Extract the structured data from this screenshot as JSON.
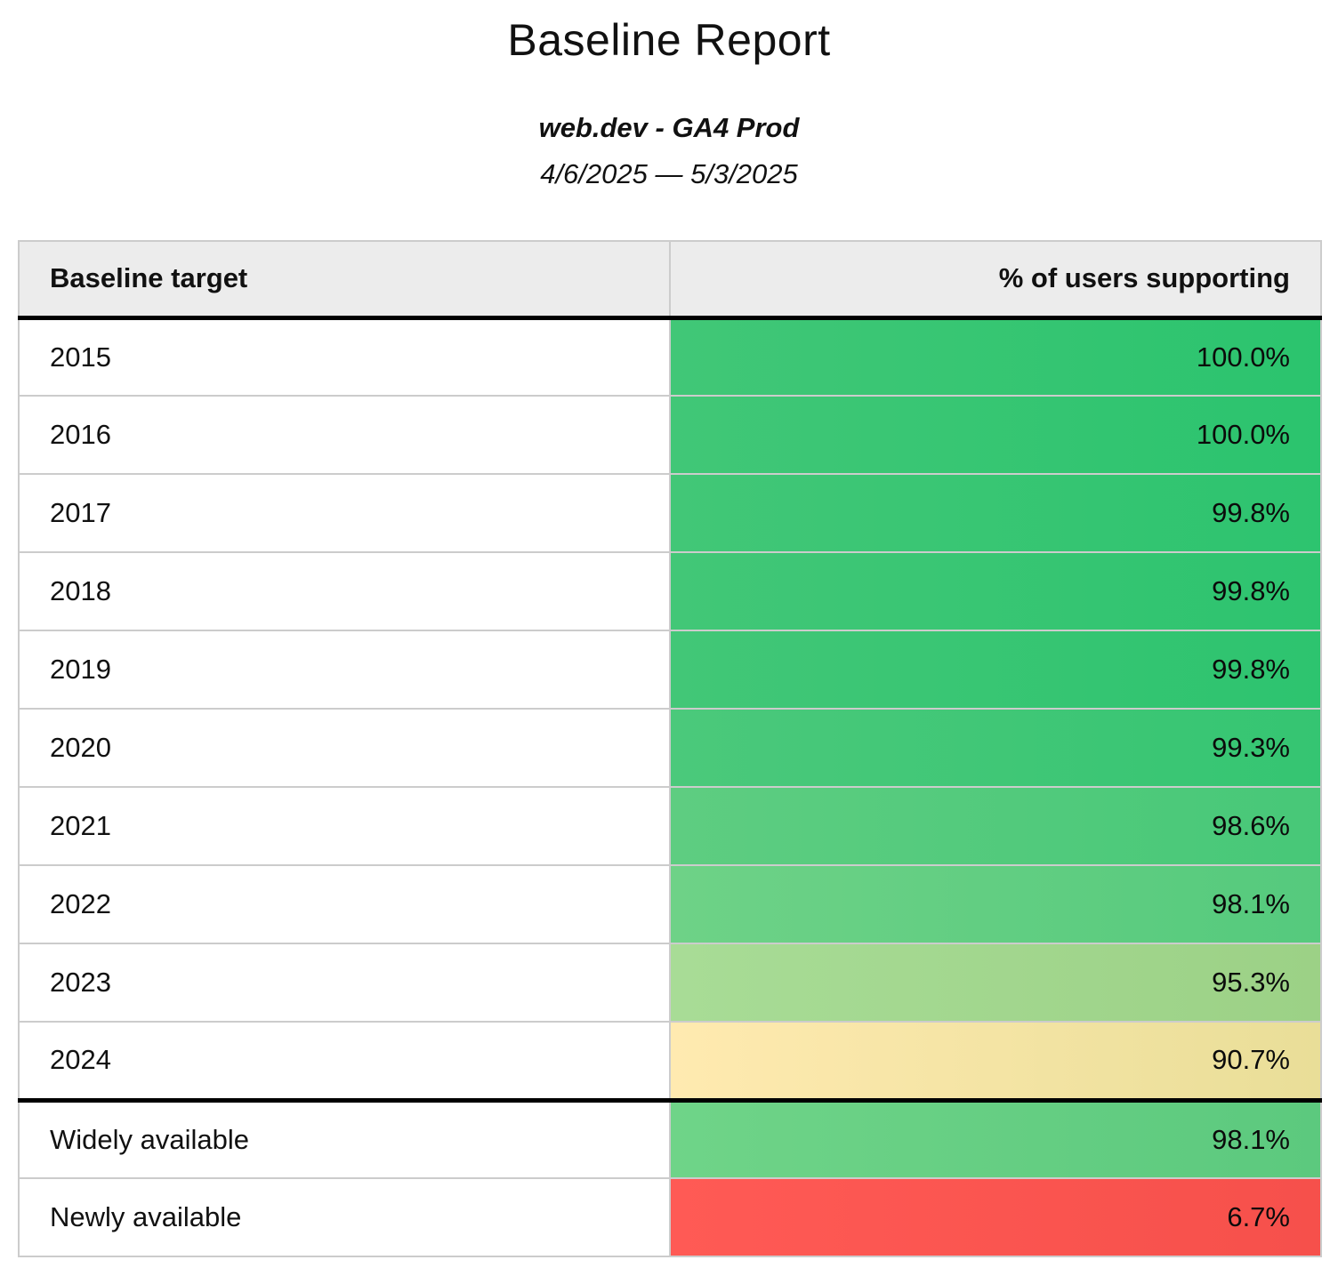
{
  "page": {
    "title": "Baseline Report",
    "subtitle": "web.dev - GA4 Prod",
    "date_range": "4/6/2025 — 5/3/2025"
  },
  "chart_data": {
    "type": "table",
    "title": "Baseline Report",
    "subtitle": "web.dev - GA4 Prod",
    "date_range": "4/6/2025 — 5/3/2025",
    "columns": [
      "Baseline target",
      "% of users supporting"
    ],
    "units": "percent of users supporting",
    "color_scale": "heatmap: green (high) through yellow to red (low), subtle lighter-left to darker-right gradient per cell",
    "rows": [
      {
        "target": "2015",
        "pct": 100.0,
        "label": "100.0%",
        "bg_left": "#41c777",
        "bg_right": "#2bc46e",
        "group": "year"
      },
      {
        "target": "2016",
        "pct": 100.0,
        "label": "100.0%",
        "bg_left": "#41c777",
        "bg_right": "#2bc46e",
        "group": "year"
      },
      {
        "target": "2017",
        "pct": 99.8,
        "label": "99.8%",
        "bg_left": "#42c777",
        "bg_right": "#2dc46f",
        "group": "year"
      },
      {
        "target": "2018",
        "pct": 99.8,
        "label": "99.8%",
        "bg_left": "#42c777",
        "bg_right": "#2dc46f",
        "group": "year"
      },
      {
        "target": "2019",
        "pct": 99.8,
        "label": "99.8%",
        "bg_left": "#42c777",
        "bg_right": "#2dc46f",
        "group": "year"
      },
      {
        "target": "2020",
        "pct": 99.3,
        "label": "99.3%",
        "bg_left": "#4bc97b",
        "bg_right": "#35c572",
        "group": "year"
      },
      {
        "target": "2021",
        "pct": 98.6,
        "label": "98.6%",
        "bg_left": "#5ecd81",
        "bg_right": "#47c878",
        "group": "year"
      },
      {
        "target": "2022",
        "pct": 98.1,
        "label": "98.1%",
        "bg_left": "#6ed287",
        "bg_right": "#55ca7d",
        "group": "year"
      },
      {
        "target": "2023",
        "pct": 95.3,
        "label": "95.3%",
        "bg_left": "#a8dc96",
        "bg_right": "#9cd186",
        "group": "year"
      },
      {
        "target": "2024",
        "pct": 90.7,
        "label": "90.7%",
        "bg_left": "#ffeab0",
        "bg_right": "#e9de98",
        "group": "year"
      },
      {
        "target": "Widely available",
        "pct": 98.1,
        "label": "98.1%",
        "bg_left": "#6fd488",
        "bg_right": "#5cc97e",
        "group": "availability"
      },
      {
        "target": "Newly available",
        "pct": 6.7,
        "label": "6.7%",
        "bg_left": "#ff5a55",
        "bg_right": "#f6504b",
        "group": "availability"
      }
    ]
  }
}
